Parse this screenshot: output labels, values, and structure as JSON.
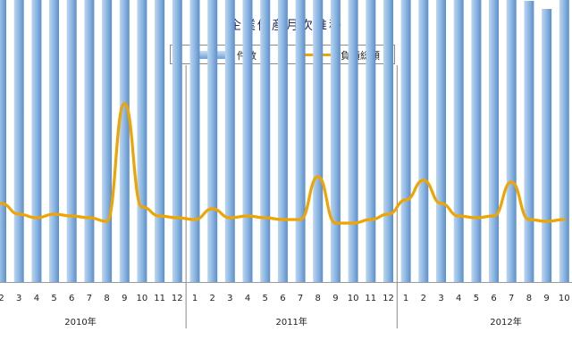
{
  "chart_data": {
    "type": "bar",
    "title": "企業倒産月次推移",
    "legend": {
      "position": "top-center",
      "entries": [
        "件数",
        "負債総額"
      ]
    },
    "years": [
      {
        "label": "2010年",
        "months": [
          "2",
          "3",
          "4",
          "5",
          "6",
          "7",
          "8",
          "9",
          "10",
          "11",
          "12"
        ]
      },
      {
        "label": "2011年",
        "months": [
          "1",
          "2",
          "3",
          "4",
          "5",
          "6",
          "7",
          "8",
          "9",
          "10",
          "11",
          "12"
        ]
      },
      {
        "label": "2012年",
        "months": [
          "1",
          "2",
          "3",
          "4",
          "5",
          "6",
          "7",
          "8",
          "9",
          "10"
        ]
      }
    ],
    "series": [
      {
        "name": "件数",
        "type": "bar",
        "values": [
          1170,
          1310,
          1200,
          1100,
          1195,
          1135,
          1135,
          1160,
          1185,
          1130,
          1160,
          1115,
          1060,
          1220,
          1140,
          1140,
          1210,
          1150,
          1110,
          1080,
          1065,
          1155,
          1110,
          1065,
          1115,
          1205,
          1090,
          1195,
          1060,
          1110,
          1050,
          1020,
          1115
        ]
      },
      {
        "name": "負債総額",
        "type": "line",
        "values": [
          220,
          190,
          180,
          190,
          185,
          180,
          170,
          500,
          210,
          185,
          180,
          175,
          205,
          180,
          185,
          180,
          175,
          175,
          295,
          165,
          165,
          175,
          190,
          230,
          285,
          220,
          185,
          180,
          185,
          280,
          175,
          170,
          175
        ]
      }
    ],
    "grid": false,
    "bar_color": "#7aa8d8",
    "line_color": "#f0a400"
  }
}
